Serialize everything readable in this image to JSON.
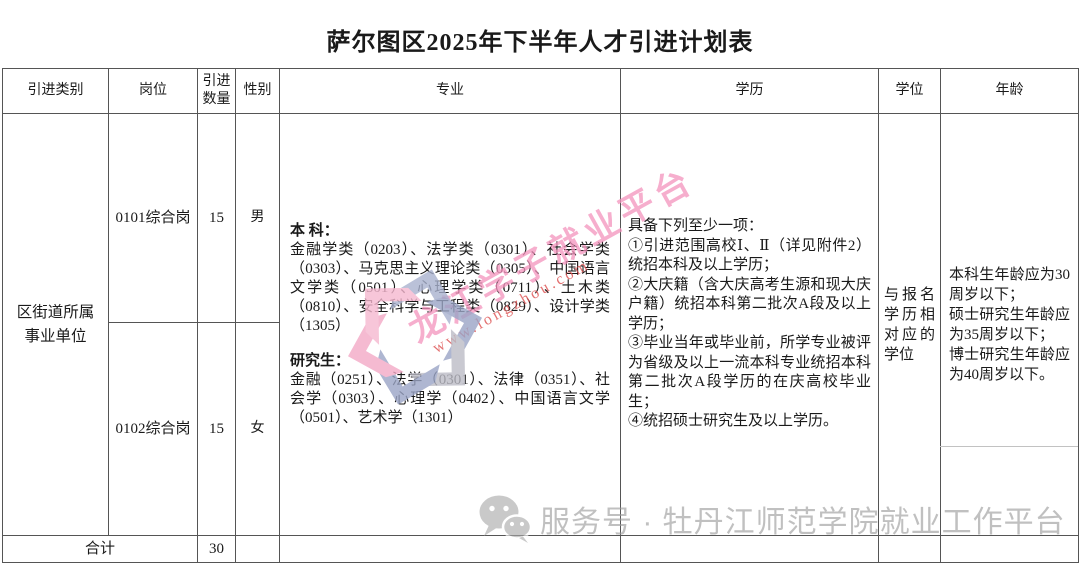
{
  "title": "萨尔图区2025年下半年人才引进计划表",
  "table": {
    "headers": [
      "引进类别",
      "岗位",
      "引进数量",
      "性别",
      "专业",
      "学历",
      "学位",
      "年龄"
    ],
    "category": "区街道所属事业单位",
    "rows": [
      {
        "post": "0101综合岗",
        "count": "15",
        "gender": "男"
      },
      {
        "post": "0102综合岗",
        "count": "15",
        "gender": "女"
      }
    ],
    "major": {
      "undergrad_label": "本  科：",
      "undergrad_text": "金融学类（0203）、法学类（0301）、社会学类（0303）、马克思主义理论类（0305）、中国语言文学类（0501）、心理学类（0711）、土木类（0810）、安全科学与工程类（0829）、设计学类（1305）",
      "graduate_label": "研究生：",
      "graduate_text": "金融（0251）、法学（0301）、法律（0351）、社会学（0303）、心理学（0402）、中国语言文学（0501）、艺术学（1301）"
    },
    "education_lines": [
      "具备下列至少一项：",
      "①引进范围高校Ⅰ、Ⅱ（详见附件2）统招本科及以上学历；",
      "②大庆籍（含大庆高考生源和现大庆户籍）统招本科第二批次A段及以上学历；",
      "③毕业当年或毕业前，所学专业被评为省级及以上一流本科专业统招本科第二批次A段学历的在庆高校毕业生；",
      "④统招硕士研究生及以上学历。"
    ],
    "degree": "与报名学历相对应的学位",
    "age_lines": [
      "本科生年龄应为30周岁以下；",
      "硕士研究生年龄应为35周岁以下；",
      "博士研究生年龄应为40周岁以下。"
    ],
    "total_label": "合计",
    "total_count": "30"
  },
  "watermark": {
    "brand_text": "龙江学子就业平台",
    "brand_color": "#f493bd",
    "url_text": "www.longzhou.com",
    "url_color": "#dd4f4f",
    "footer_text": "服务号 · 牡丹江师范学院就业工作平台",
    "footer_color": "#9b9b9b",
    "logo_colors": {
      "pink": "#f3a9c6",
      "blue": "#a9b2cf",
      "gray": "#bcbcc6"
    }
  }
}
